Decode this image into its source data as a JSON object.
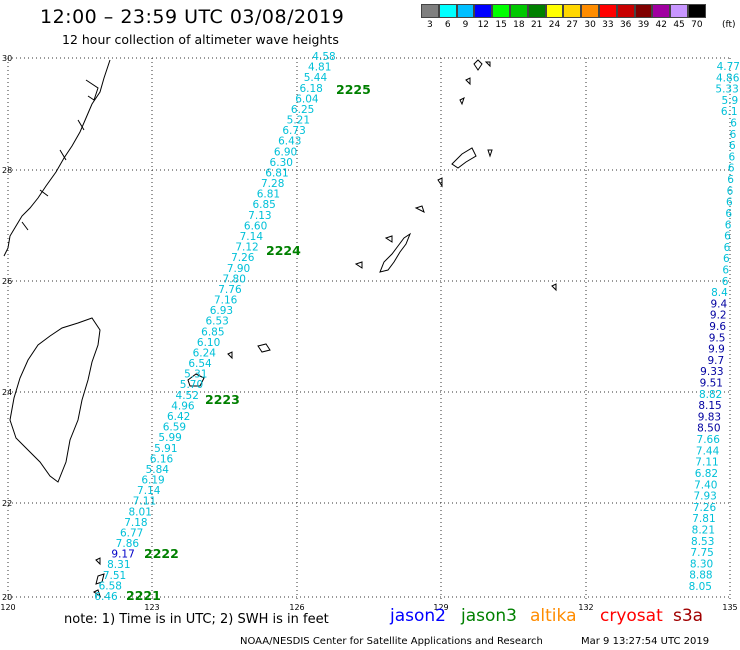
{
  "header": {
    "title": "12:00 – 23:59 UTC 03/08/2019",
    "subtitle": "12 hour collection of altimeter wave heights"
  },
  "legend": {
    "unit": "(ft)",
    "items": [
      {
        "label": "3",
        "color": "#7f7f7f"
      },
      {
        "label": "6",
        "color": "#00ffff"
      },
      {
        "label": "9",
        "color": "#00bfff"
      },
      {
        "label": "12",
        "color": "#0000ff"
      },
      {
        "label": "15",
        "color": "#00ff00"
      },
      {
        "label": "18",
        "color": "#00c800"
      },
      {
        "label": "21",
        "color": "#008000"
      },
      {
        "label": "24",
        "color": "#ffff00"
      },
      {
        "label": "27",
        "color": "#ffd700"
      },
      {
        "label": "30",
        "color": "#ff8c00"
      },
      {
        "label": "33",
        "color": "#ff0000"
      },
      {
        "label": "36",
        "color": "#c80000"
      },
      {
        "label": "39",
        "color": "#800000"
      },
      {
        "label": "42",
        "color": "#a000a0"
      },
      {
        "label": "45",
        "color": "#c896ff"
      },
      {
        "label": "70",
        "color": "#000000"
      }
    ]
  },
  "axes": {
    "lat_labels": [
      "30",
      "28",
      "26",
      "24",
      "22",
      "20"
    ],
    "lon_labels": [
      "120",
      "123",
      "126",
      "129",
      "132",
      "135"
    ]
  },
  "track_times": [
    {
      "label": "2225",
      "color": "#008000"
    },
    {
      "label": "2224",
      "color": "#008000"
    },
    {
      "label": "2223",
      "color": "#008000"
    },
    {
      "label": "2222",
      "color": "#008000"
    },
    {
      "label": "2221",
      "color": "#008000"
    }
  ],
  "track_a": {
    "color": "#00c0d8",
    "values": [
      "4.58",
      "4.81",
      "5.44",
      "6.18",
      "6.04",
      "6.25",
      "5.21",
      "6.73",
      "6.43",
      "6.90",
      "6.30",
      "6.81",
      "7.28",
      "6.81",
      "6.85",
      "7.13",
      "6.60",
      "7.14",
      "7.12",
      "7.26",
      "7.90",
      "7.80",
      "7.76",
      "7.16",
      "6.93",
      "6.53",
      "6.85",
      "6.10",
      "6.24",
      "6.54",
      "5.31",
      "5.70",
      "4.52",
      "4.96",
      "6.42",
      "6.59",
      "5.99",
      "5.91",
      "6.16",
      "5.84",
      "6.19",
      "7.14",
      "7.11",
      "8.01",
      "7.18",
      "6.77",
      "7.86",
      "9.17",
      "8.31",
      "7.51",
      "6.58",
      "6.46"
    ]
  },
  "track_b": {
    "color": "#00c0d8",
    "values": [
      "4.77",
      "4.86",
      "5.33",
      "5.9",
      "6.1",
      "6",
      "6",
      "6",
      "6",
      "6",
      "6",
      "6",
      "6",
      "6",
      "6",
      "6",
      "6",
      "6",
      "6",
      "6",
      "8.4",
      "9.4",
      "9.2",
      "9.6",
      "9.5",
      "9.9",
      "9.7",
      "9.33",
      "9.51",
      "8.82",
      "8.15",
      "9.83",
      "8.50",
      "7.66",
      "7.44",
      "7.11",
      "6.82",
      "7.40",
      "7.93",
      "7.26",
      "7.81",
      "8.21",
      "8.53",
      "7.75",
      "8.30",
      "8.88",
      "8.05"
    ]
  },
  "footer": {
    "note": "note:  1) Time is in UTC;  2) SWH is in feet",
    "satellites": [
      {
        "name": "jason2",
        "color": "#0000ff"
      },
      {
        "name": "jason3",
        "color": "#008000"
      },
      {
        "name": "altika",
        "color": "#ff8c00"
      },
      {
        "name": "cryosat",
        "color": "#ff0000"
      },
      {
        "name": "s3a",
        "color": "#a00000"
      }
    ],
    "credit": "NOAA/NESDIS Center for Satellite Applications and Research",
    "timestamp": "Mar  9 13:27:54 UTC 2019"
  }
}
